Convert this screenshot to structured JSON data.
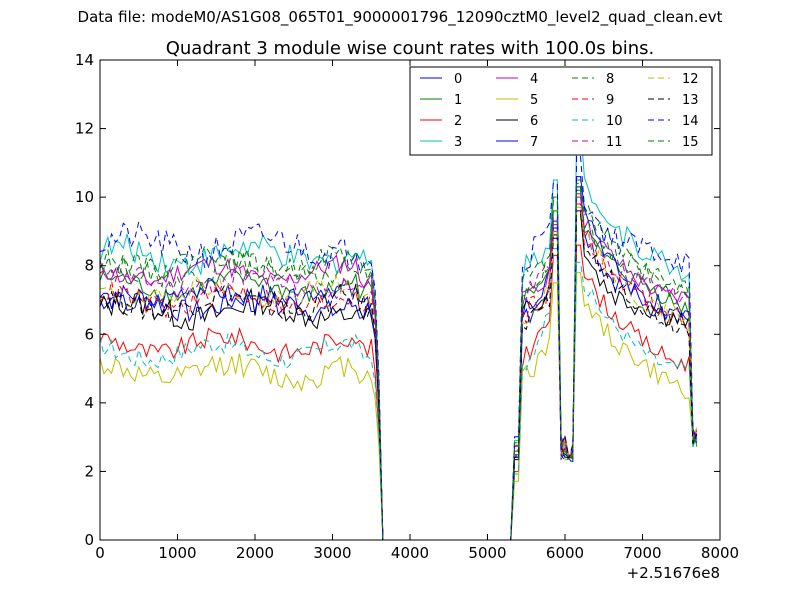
{
  "suptitle": "Data file: modeM0/AS1G08_065T01_9000001796_12090cztM0_level2_quad_clean.evt",
  "chart_data": {
    "type": "line",
    "title": "Quadrant 3 module wise count rates with 100.0s bins.",
    "xlabel": "",
    "ylabel": "",
    "x_offset_label": "+2.51676e8",
    "xlim": [
      0,
      8000
    ],
    "ylim": [
      0,
      14
    ],
    "xticks": [
      "0",
      "1000",
      "2000",
      "3000",
      "4000",
      "5000",
      "6000",
      "7000",
      "8000"
    ],
    "yticks": [
      "0",
      "2",
      "4",
      "6",
      "8",
      "10",
      "12",
      "14"
    ],
    "grid": false,
    "legend_position": "top-right",
    "legend_columns": 4,
    "series": [
      {
        "name": "0",
        "color": "#0000ff",
        "dash": "solid",
        "level": 6.9,
        "peak1": 9.3,
        "peak2": 10.3,
        "amp": 0.35,
        "ph": 0.3
      },
      {
        "name": "1",
        "color": "#008000",
        "dash": "solid",
        "level": 7.4,
        "peak1": 9.6,
        "peak2": 10.2,
        "amp": 0.3,
        "ph": 1.1
      },
      {
        "name": "2",
        "color": "#ff0000",
        "dash": "solid",
        "level": 5.7,
        "peak1": 8.3,
        "peak2": 8.6,
        "amp": 0.3,
        "ph": 2.0
      },
      {
        "name": "3",
        "color": "#00bfbf",
        "dash": "solid",
        "level": 8.3,
        "peak1": 10.5,
        "peak2": 12.1,
        "amp": 0.4,
        "ph": 0.7
      },
      {
        "name": "4",
        "color": "#bf00bf",
        "dash": "solid",
        "level": 7.8,
        "peak1": 9.2,
        "peak2": 10.0,
        "amp": 0.3,
        "ph": 2.6
      },
      {
        "name": "5",
        "color": "#bfbf00",
        "dash": "solid",
        "level": 4.9,
        "peak1": 7.5,
        "peak2": 7.8,
        "amp": 0.35,
        "ph": 1.7
      },
      {
        "name": "6",
        "color": "#000000",
        "dash": "solid",
        "level": 6.7,
        "peak1": 8.9,
        "peak2": 9.6,
        "amp": 0.4,
        "ph": 0.2
      },
      {
        "name": "7",
        "color": "#0000ff",
        "dash": "solid",
        "level": 7.1,
        "peak1": 9.1,
        "peak2": 10.6,
        "amp": 0.3,
        "ph": 3.0
      },
      {
        "name": "8",
        "color": "#008000",
        "dash": "dashed",
        "level": 7.9,
        "peak1": 9.9,
        "peak2": 10.4,
        "amp": 0.35,
        "ph": 0.9
      },
      {
        "name": "9",
        "color": "#ff0000",
        "dash": "dashed",
        "level": 7.0,
        "peak1": 9.0,
        "peak2": 9.8,
        "amp": 0.35,
        "ph": 1.4
      },
      {
        "name": "10",
        "color": "#00bfbf",
        "dash": "dashed",
        "level": 5.5,
        "peak1": 8.5,
        "peak2": 8.1,
        "amp": 0.3,
        "ph": 2.3
      },
      {
        "name": "11",
        "color": "#bf00bf",
        "dash": "dashed",
        "level": 7.5,
        "peak1": 9.4,
        "peak2": 10.1,
        "amp": 0.3,
        "ph": 0.5
      },
      {
        "name": "12",
        "color": "#bfbf00",
        "dash": "dashed",
        "level": 7.2,
        "peak1": 9.0,
        "peak2": 9.7,
        "amp": 0.3,
        "ph": 2.8
      },
      {
        "name": "13",
        "color": "#000000",
        "dash": "dashed",
        "level": 6.9,
        "peak1": 8.8,
        "peak2": 9.5,
        "amp": 0.35,
        "ph": 1.9
      },
      {
        "name": "14",
        "color": "#0000ff",
        "dash": "dashed",
        "level": 8.6,
        "peak1": 10.4,
        "peak2": 11.2,
        "amp": 0.45,
        "ph": 0.1
      },
      {
        "name": "15",
        "color": "#008000",
        "dash": "dashed",
        "level": 8.1,
        "peak1": 10.0,
        "peak2": 10.5,
        "amp": 0.35,
        "ph": 2.4
      }
    ]
  }
}
